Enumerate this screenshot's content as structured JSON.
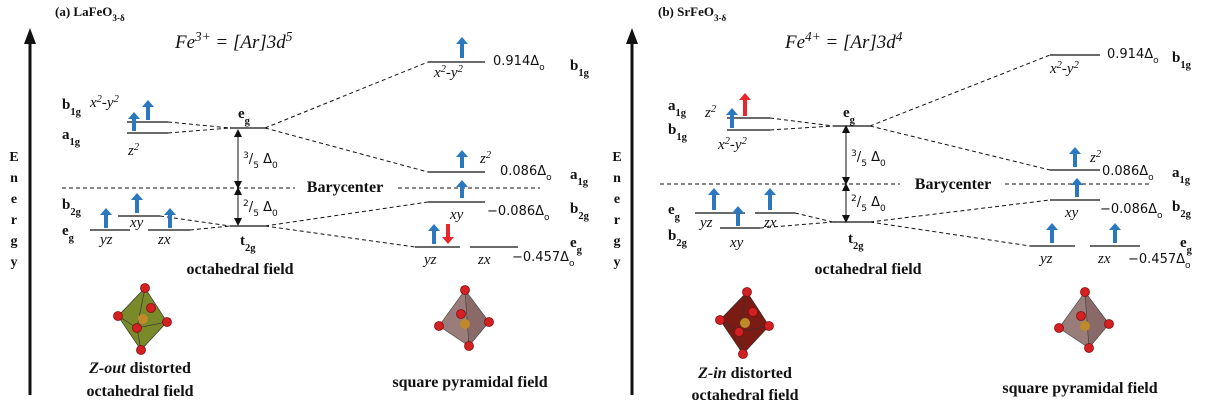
{
  "panels": [
    {
      "title": [
        "(a) LaFeO",
        "3-δ"
      ],
      "configuration": [
        "Fe",
        "3+",
        " = [Ar]3d",
        "5"
      ],
      "axis_label": "Energy",
      "labels": [
        [
          "b",
          "1g"
        ],
        [
          "x",
          "2",
          "-y",
          "2"
        ],
        [
          "a",
          "1g"
        ],
        [
          "z",
          "2"
        ],
        [
          "e",
          "g"
        ],
        [
          "3",
          "/",
          "5",
          " Δ",
          "0"
        ],
        [
          "2",
          "/",
          "5",
          " Δ",
          "0"
        ],
        [
          "Barycenter"
        ],
        [
          "b",
          "2g"
        ],
        [
          "xy"
        ],
        [
          "e",
          "g"
        ],
        [
          "yz"
        ],
        [
          "zx"
        ],
        [
          "t",
          "2g"
        ],
        [
          "octahedral field"
        ],
        [
          "x",
          "2",
          "-y",
          "2"
        ],
        [
          "0.914Δ",
          "o"
        ],
        [
          "b",
          "1g"
        ],
        [
          "z",
          "2"
        ],
        [
          "0.086Δ",
          "o"
        ],
        [
          "a",
          "1g"
        ],
        [
          "xy"
        ],
        [
          "−0.086Δ",
          "o"
        ],
        [
          "b",
          "2g"
        ],
        [
          "yz"
        ],
        [
          "zx"
        ],
        [
          "−0.457Δ",
          "o"
        ],
        [
          "e",
          "g"
        ],
        [
          "Z-out",
          " distorted"
        ],
        [
          "octahedral field"
        ],
        [
          "square pyramidal field"
        ]
      ]
    },
    {
      "title": [
        "(b) SrFeO",
        "3-δ"
      ],
      "configuration": [
        "Fe",
        "4+",
        " = [Ar]3d",
        "4"
      ],
      "axis_label": "Energy",
      "labels": [
        [
          "a",
          "1g"
        ],
        [
          "z",
          "2"
        ],
        [
          "b",
          "1g"
        ],
        [
          "x",
          "2",
          "-y",
          "2"
        ],
        [
          "e",
          "g"
        ],
        [
          "3",
          "/",
          "5",
          " Δ",
          "0"
        ],
        [
          "2",
          "/",
          "5",
          " Δ",
          "0"
        ],
        [
          "Barycenter"
        ],
        [
          "e",
          "g"
        ],
        [
          "yz"
        ],
        [
          "zx"
        ],
        [
          "b",
          "2g"
        ],
        [
          "xy"
        ],
        [
          "t",
          "2g"
        ],
        [
          "octahedral field"
        ],
        [
          "x",
          "2",
          "-y",
          "2"
        ],
        [
          "0.914Δ",
          "o"
        ],
        [
          "b",
          "1g"
        ],
        [
          "z",
          "2"
        ],
        [
          "0.086Δ",
          "o"
        ],
        [
          "a",
          "1g"
        ],
        [
          "xy"
        ],
        [
          "−0.086Δ",
          "o"
        ],
        [
          "b",
          "2g"
        ],
        [
          "yz"
        ],
        [
          "zx"
        ],
        [
          "−0.457Δ",
          "o"
        ],
        [
          "e",
          "g"
        ],
        [
          "Z-in",
          " distorted"
        ],
        [
          "octahedral field"
        ],
        [
          "square pyramidal field"
        ]
      ]
    }
  ]
}
